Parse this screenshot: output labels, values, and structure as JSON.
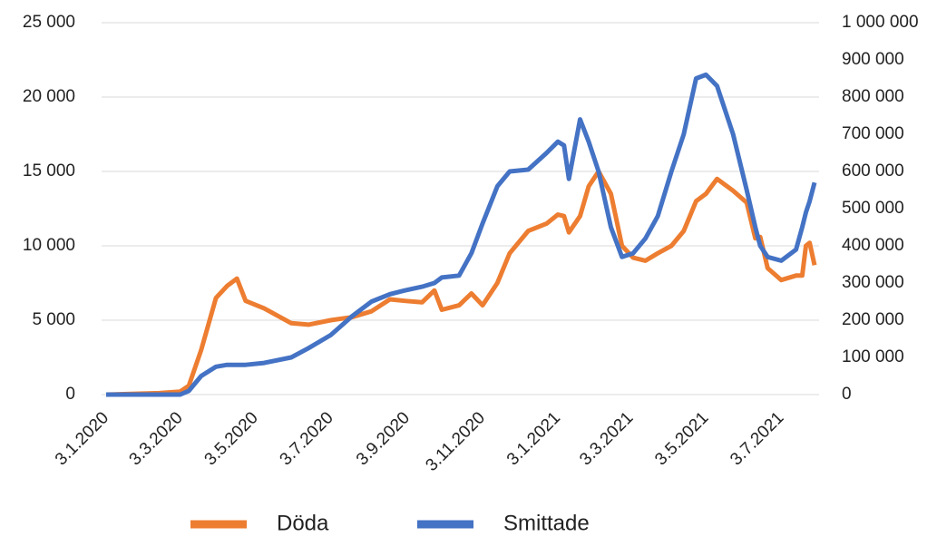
{
  "chart_data": {
    "type": "line",
    "x": [
      "2020-01-03",
      "2020-02-15",
      "2020-03-03",
      "2020-03-10",
      "2020-03-20",
      "2020-04-01",
      "2020-04-10",
      "2020-04-18",
      "2020-04-25",
      "2020-05-10",
      "2020-06-01",
      "2020-06-15",
      "2020-07-03",
      "2020-07-20",
      "2020-08-05",
      "2020-08-20",
      "2020-09-01",
      "2020-09-15",
      "2020-09-25",
      "2020-10-01",
      "2020-10-15",
      "2020-10-25",
      "2020-11-03",
      "2020-11-15",
      "2020-11-25",
      "2020-12-10",
      "2020-12-25",
      "2021-01-03",
      "2021-01-08",
      "2021-01-12",
      "2021-01-21",
      "2021-01-28",
      "2021-02-05",
      "2021-02-15",
      "2021-02-24",
      "2021-03-05",
      "2021-03-15",
      "2021-03-25",
      "2021-04-05",
      "2021-04-15",
      "2021-04-25",
      "2021-05-03",
      "2021-05-12",
      "2021-05-25",
      "2021-06-05",
      "2021-06-12",
      "2021-06-16",
      "2021-06-22",
      "2021-07-03",
      "2021-07-15",
      "2021-07-20",
      "2021-07-23",
      "2021-07-26",
      "2021-07-30"
    ],
    "series": [
      {
        "name": "Döda",
        "color": "#ed7d31",
        "values": [
          0,
          100,
          200,
          600,
          3000,
          6500,
          7300,
          7800,
          6300,
          5800,
          4800,
          4700,
          5000,
          5200,
          5600,
          6400,
          6300,
          6200,
          7000,
          5700,
          6000,
          6800,
          6000,
          7500,
          9500,
          11000,
          11500,
          12100,
          12000,
          10900,
          12000,
          14000,
          15000,
          13500,
          10000,
          9200,
          9000,
          9500,
          10000,
          11000,
          13000,
          13500,
          14500,
          13700,
          12900,
          10500,
          10600,
          8500,
          7700,
          8000,
          8000,
          10000,
          10200,
          8700
        ]
      },
      {
        "name": "Smittade",
        "color": "#4472c4",
        "axis": "y2",
        "values": [
          0,
          0,
          0,
          10000,
          50000,
          75000,
          80000,
          80000,
          80000,
          85000,
          100000,
          125000,
          160000,
          210000,
          250000,
          270000,
          280000,
          290000,
          300000,
          315000,
          320000,
          380000,
          460000,
          560000,
          600000,
          605000,
          650000,
          680000,
          670000,
          580000,
          740000,
          680000,
          600000,
          450000,
          370000,
          380000,
          420000,
          480000,
          600000,
          700000,
          850000,
          860000,
          830000,
          700000,
          550000,
          450000,
          400000,
          370000,
          360000,
          390000,
          450000,
          490000,
          520000,
          570000
        ]
      }
    ],
    "xlim": [
      "2020-01-03",
      "2021-07-30"
    ],
    "xticks": [
      {
        "value": "2020-01-03",
        "label": "3.1.2020"
      },
      {
        "value": "2020-03-03",
        "label": "3.3.2020"
      },
      {
        "value": "2020-05-03",
        "label": "3.5.2020"
      },
      {
        "value": "2020-07-03",
        "label": "3.7.2020"
      },
      {
        "value": "2020-09-03",
        "label": "3.9.2020"
      },
      {
        "value": "2020-11-03",
        "label": "3.11.2020"
      },
      {
        "value": "2021-01-03",
        "label": "3.1.2021"
      },
      {
        "value": "2021-03-03",
        "label": "3.3.2021"
      },
      {
        "value": "2021-05-03",
        "label": "3.5.2021"
      },
      {
        "value": "2021-07-03",
        "label": "3.7.2021"
      }
    ],
    "ylim": [
      0,
      25000
    ],
    "yticks": [
      0,
      {
        "value": 5000,
        "label": "5 000"
      },
      {
        "value": 10000,
        "label": "10 000"
      },
      {
        "value": 15000,
        "label": "15 000"
      },
      {
        "value": 20000,
        "label": "20 000"
      },
      {
        "value": 25000,
        "label": "25 000"
      }
    ],
    "y2lim": [
      0,
      1000000
    ],
    "y2ticks": [
      0,
      {
        "value": 100000,
        "label": "100 000"
      },
      {
        "value": 200000,
        "label": "200 000"
      },
      {
        "value": 300000,
        "label": "300 000"
      },
      {
        "value": 400000,
        "label": "400 000"
      },
      {
        "value": 500000,
        "label": "500 000"
      },
      {
        "value": 600000,
        "label": "600 000"
      },
      {
        "value": 700000,
        "label": "700 000"
      },
      {
        "value": 800000,
        "label": "800 000"
      },
      {
        "value": 900000,
        "label": "900 000"
      },
      {
        "value": 1000000,
        "label": "1 000 000"
      }
    ],
    "grid": true,
    "legend": "bottom"
  }
}
